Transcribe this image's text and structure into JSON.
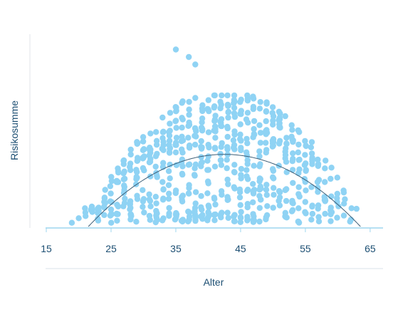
{
  "chart_data": {
    "type": "scatter",
    "title": "",
    "xlabel": "Alter",
    "ylabel": "Risikosumme",
    "xlim": [
      15,
      66
    ],
    "ylim": [
      0,
      100
    ],
    "x_ticks": [
      15,
      25,
      35,
      45,
      55,
      65
    ],
    "grid": false,
    "legend": "none",
    "colors": {
      "points": "#8fd3f4",
      "trend": "#3d5f78",
      "axis": "#9ed6ef",
      "text": "#1d4f73",
      "separator": "#d9e3ea"
    },
    "trend": {
      "type": "quadratic",
      "vertex_x": 43,
      "vertex_y": 38.5,
      "zero_x": [
        21.5,
        63.5
      ]
    },
    "outliers": [
      [
        35,
        94.5
      ],
      [
        37,
        90.5
      ],
      [
        38,
        86.5
      ],
      [
        28,
        10
      ]
    ],
    "density": [
      [
        19,
        1
      ],
      [
        20,
        1
      ],
      [
        21,
        3
      ],
      [
        22,
        5
      ],
      [
        23,
        7
      ],
      [
        24,
        8
      ],
      [
        25,
        11
      ],
      [
        26,
        12
      ],
      [
        27,
        14
      ],
      [
        28,
        14
      ],
      [
        29,
        15
      ],
      [
        30,
        16
      ],
      [
        31,
        17
      ],
      [
        32,
        18
      ],
      [
        33,
        19
      ],
      [
        34,
        20
      ],
      [
        35,
        21
      ],
      [
        36,
        22
      ],
      [
        37,
        22
      ],
      [
        38,
        22
      ],
      [
        39,
        22
      ],
      [
        40,
        22
      ],
      [
        41,
        22
      ],
      [
        42,
        22
      ],
      [
        43,
        22
      ],
      [
        44,
        22
      ],
      [
        45,
        22
      ],
      [
        46,
        22
      ],
      [
        47,
        21
      ],
      [
        48,
        20
      ],
      [
        49,
        20
      ],
      [
        50,
        19
      ],
      [
        51,
        18
      ],
      [
        52,
        17
      ],
      [
        53,
        16
      ],
      [
        54,
        15
      ],
      [
        55,
        14
      ],
      [
        56,
        12
      ],
      [
        57,
        11
      ],
      [
        58,
        9
      ],
      [
        59,
        8
      ],
      [
        60,
        6
      ],
      [
        61,
        5
      ],
      [
        62,
        3
      ],
      [
        63,
        1
      ]
    ]
  }
}
